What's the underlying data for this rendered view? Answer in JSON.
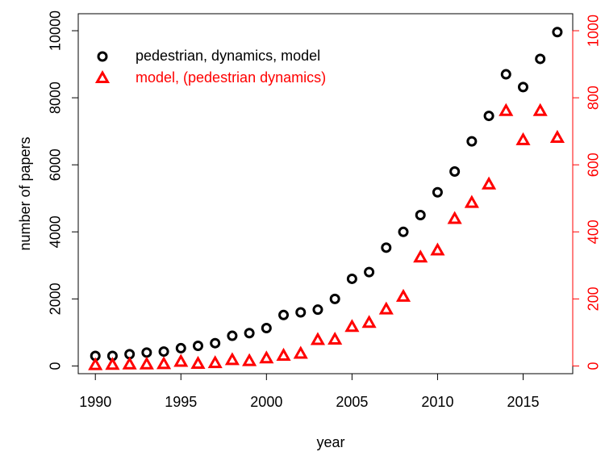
{
  "chart_data": {
    "type": "scatter",
    "xlabel": "year",
    "ylabel": "number of papers",
    "x": [
      1990,
      1991,
      1992,
      1993,
      1994,
      1995,
      1996,
      1997,
      1998,
      1999,
      2000,
      2001,
      2002,
      2003,
      2004,
      2005,
      2006,
      2007,
      2008,
      2009,
      2010,
      2011,
      2012,
      2013,
      2014,
      2015,
      2016,
      2017
    ],
    "series": [
      {
        "name": "pedestrian, dynamics, model",
        "color": "#000000",
        "marker": "circle",
        "values": [
          300,
          300,
          350,
          400,
          430,
          530,
          600,
          680,
          900,
          980,
          1130,
          1520,
          1600,
          1680,
          2000,
          2600,
          2800,
          3530,
          4000,
          4500,
          5180,
          5800,
          6700,
          7460,
          8700,
          8320,
          9160,
          9960
        ]
      },
      {
        "name": "model, (pedestrian dynamics)",
        "color": "#ff0000",
        "marker": "triangle",
        "axis": "y2",
        "values": [
          2,
          3,
          4,
          4,
          5,
          12,
          6,
          8,
          17,
          14,
          22,
          30,
          36,
          77,
          78,
          116,
          128,
          168,
          206,
          323,
          344,
          438,
          486,
          541,
          760,
          673,
          760,
          680
        ]
      }
    ],
    "xlim": [
      1989,
      2017.9
    ],
    "xticks": [
      1990,
      1995,
      2000,
      2005,
      2010,
      2015
    ],
    "ylim": [
      -230,
      10507
    ],
    "yticks": [
      0,
      2000,
      4000,
      6000,
      8000,
      10000
    ],
    "y2lim": [
      -23,
      1050.7
    ],
    "y2ticks": [
      0,
      200,
      400,
      600,
      800,
      1000
    ],
    "legend": "top-left"
  }
}
